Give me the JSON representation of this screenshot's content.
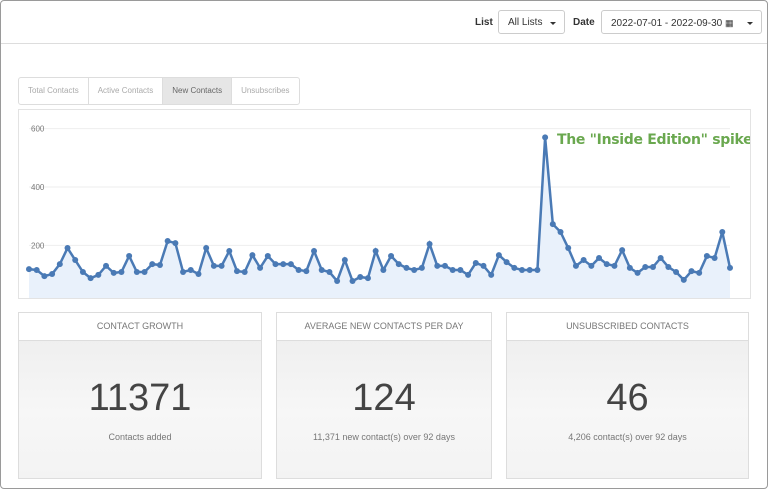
{
  "toolbar": {
    "list_label": "List",
    "list_value": "All Lists",
    "date_label": "Date",
    "date_value": "2022-07-01 - 2022-09-30"
  },
  "tabs": [
    "Total Contacts",
    "Active Contacts",
    "New Contacts",
    "Unsubscribes"
  ],
  "chart_data": {
    "type": "line",
    "annotation": "The \"Inside Edition\" spike",
    "color": "#4a7ab5",
    "fill": "#e9f1fb",
    "grid": true,
    "ylim": [
      20,
      650
    ],
    "yticks": [
      200,
      400,
      600
    ],
    "values": [
      119,
      116,
      95,
      102,
      136,
      191,
      150,
      109,
      88,
      99,
      130,
      106,
      109,
      164,
      109,
      109,
      136,
      133,
      215,
      208,
      109,
      116,
      102,
      191,
      130,
      130,
      181,
      112,
      109,
      167,
      123,
      164,
      136,
      136,
      136,
      116,
      112,
      181,
      116,
      109,
      78,
      150,
      78,
      92,
      88,
      181,
      116,
      164,
      136,
      123,
      116,
      123,
      205,
      130,
      130,
      116,
      116,
      99,
      140,
      130,
      99,
      167,
      143,
      123,
      116,
      116,
      116,
      570,
      273,
      246,
      191,
      130,
      150,
      130,
      157,
      136,
      130,
      184,
      123,
      106,
      126,
      126,
      157,
      126,
      109,
      82,
      112,
      106,
      164,
      157,
      246,
      123
    ]
  },
  "cards": [
    {
      "title": "CONTACT GROWTH",
      "value": "11371",
      "caption": "Contacts added"
    },
    {
      "title": "AVERAGE NEW CONTACTS PER DAY",
      "value": "124",
      "caption": "11,371 new contact(s) over 92 days"
    },
    {
      "title": "UNSUBSCRIBED CONTACTS",
      "value": "46",
      "caption": "4,206 contact(s) over 92 days"
    }
  ]
}
